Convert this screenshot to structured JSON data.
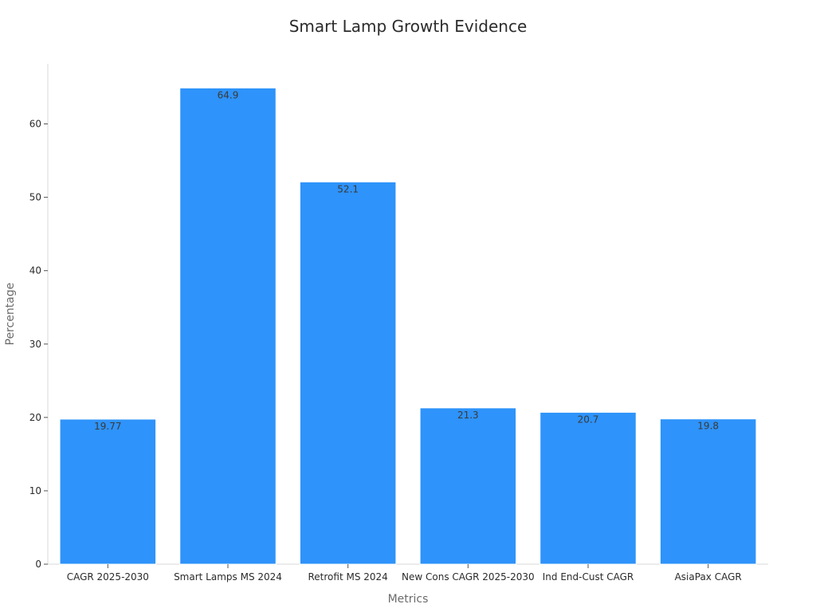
{
  "chart_data": {
    "type": "bar",
    "title": "Smart Lamp Growth Evidence",
    "xlabel": "Metrics",
    "ylabel": "Percentage",
    "categories": [
      "CAGR 2025-2030",
      "Smart Lamps MS 2024",
      "Retrofit MS 2024",
      "New Cons CAGR 2025-2030",
      "Ind End-Cust CAGR",
      "AsiaPax CAGR"
    ],
    "values": [
      19.77,
      64.9,
      52.1,
      21.3,
      20.7,
      19.8
    ],
    "value_labels": [
      "19.77",
      "64.9",
      "52.1",
      "21.3",
      "20.7",
      "19.8"
    ],
    "y_ticks": [
      0,
      10,
      20,
      30,
      40,
      50,
      60
    ],
    "ylim": [
      0,
      68.2
    ],
    "grid": false,
    "legend": "none",
    "bar_color": "#2e93fa"
  }
}
